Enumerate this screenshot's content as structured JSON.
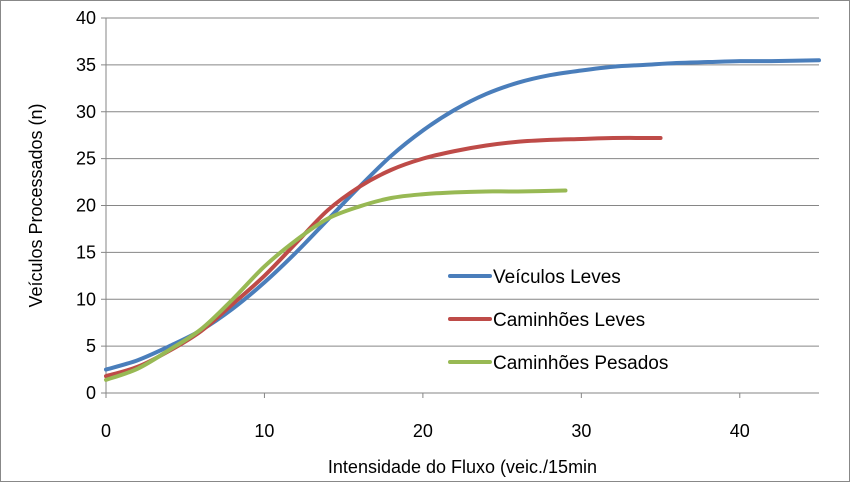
{
  "chart_data": {
    "type": "line",
    "title": "",
    "xlabel": "Intensidade do Fluxo (veic./15min",
    "ylabel": "Veículos Processados (n)",
    "xlim": [
      0,
      45
    ],
    "ylim": [
      0,
      40
    ],
    "x_ticks": [
      "0",
      "10",
      "20",
      "30",
      "40"
    ],
    "y_ticks": [
      "0",
      "5",
      "10",
      "15",
      "20",
      "25",
      "30",
      "35",
      "40"
    ],
    "grid": "horizontal",
    "legend_position": "center-right",
    "series": [
      {
        "name": "Veículos Leves",
        "color": "#4a7ebb",
        "x": [
          0,
          2,
          4,
          6,
          8,
          10,
          12,
          14,
          16,
          18,
          20,
          22,
          24,
          26,
          28,
          30,
          32,
          34,
          36,
          38,
          40,
          42,
          45
        ],
        "y": [
          2.5,
          3.5,
          5,
          6.7,
          9,
          11.8,
          15,
          18.5,
          22,
          25.3,
          28,
          30.2,
          31.9,
          33.1,
          33.9,
          34.4,
          34.8,
          35,
          35.2,
          35.3,
          35.4,
          35.4,
          35.5
        ]
      },
      {
        "name": "Caminhões Leves",
        "color": "#be4b48",
        "x": [
          0,
          2,
          4,
          6,
          8,
          10,
          12,
          14,
          16,
          18,
          20,
          22,
          24,
          26,
          28,
          30,
          32,
          35
        ],
        "y": [
          1.8,
          2.8,
          4.5,
          6.6,
          9.5,
          12.5,
          16,
          19.5,
          22,
          23.8,
          25,
          25.8,
          26.4,
          26.8,
          27,
          27.1,
          27.2,
          27.2
        ]
      },
      {
        "name": "Caminhões Pesados",
        "color": "#98b954",
        "x": [
          0,
          2,
          4,
          6,
          8,
          10,
          12,
          14,
          16,
          18,
          20,
          22,
          24,
          26,
          29
        ],
        "y": [
          1.4,
          2.6,
          4.6,
          6.8,
          10,
          13.5,
          16.3,
          18.6,
          19.9,
          20.8,
          21.2,
          21.4,
          21.5,
          21.5,
          21.6
        ]
      }
    ]
  }
}
